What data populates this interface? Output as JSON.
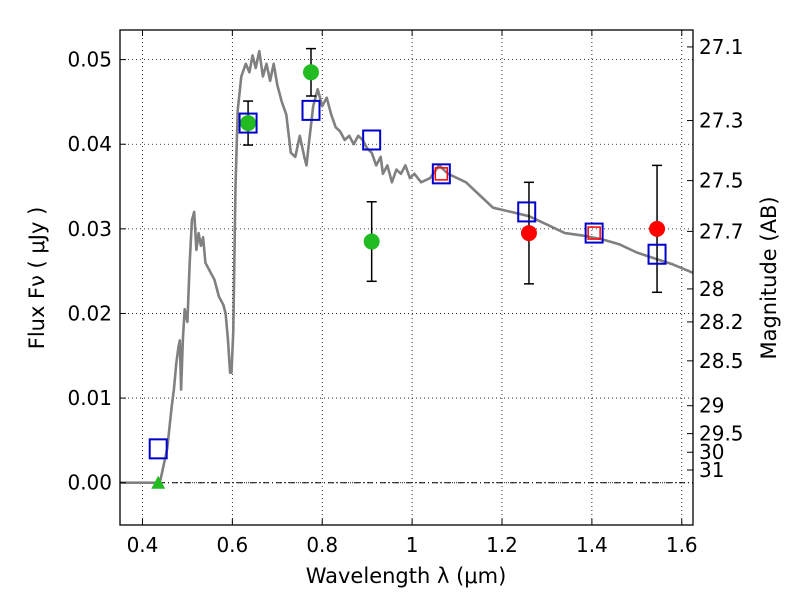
{
  "chart_data": {
    "type": "scatter",
    "xlabel": "Wavelength  λ (μm)",
    "ylabel": "Flux  Fν  ( μJy )",
    "y2label": "Magnitude (AB)",
    "xlim": [
      0.35,
      1.625
    ],
    "ylim": [
      -0.005,
      0.0535
    ],
    "grid": true,
    "x_ticks": [
      0.4,
      0.6,
      0.8,
      1.0,
      1.2,
      1.4,
      1.6
    ],
    "x_tick_labels": [
      "0.4",
      "0.6",
      "0.8",
      "1",
      "1.2",
      "1.4",
      "1.6"
    ],
    "y_ticks": [
      0.0,
      0.01,
      0.02,
      0.03,
      0.04,
      0.05
    ],
    "y_tick_labels": [
      "0.00",
      "0.01",
      "0.02",
      "0.03",
      "0.04",
      "0.05"
    ],
    "mag_ticks": [
      {
        "label": "27.1",
        "flux": 0.0515
      },
      {
        "label": "27.3",
        "flux": 0.0428
      },
      {
        "label": "27.5",
        "flux": 0.0357
      },
      {
        "label": "27.7",
        "flux": 0.0297
      },
      {
        "label": "28",
        "flux": 0.0229
      },
      {
        "label": "28.2",
        "flux": 0.019
      },
      {
        "label": "28.5",
        "flux": 0.0144
      },
      {
        "label": "29",
        "flux": 0.0091
      },
      {
        "label": "29.5",
        "flux": 0.0058
      },
      {
        "label": "30",
        "flux": 0.0036
      },
      {
        "label": "31",
        "flux": 0.0015
      }
    ],
    "sed_model": {
      "color": "#808080",
      "points": [
        [
          0.35,
          0.0
        ],
        [
          0.43,
          0.0
        ],
        [
          0.44,
          0.0003
        ],
        [
          0.455,
          0.004
        ],
        [
          0.465,
          0.009
        ],
        [
          0.47,
          0.011
        ],
        [
          0.475,
          0.014
        ],
        [
          0.48,
          0.016
        ],
        [
          0.483,
          0.0168
        ],
        [
          0.486,
          0.011
        ],
        [
          0.49,
          0.017
        ],
        [
          0.494,
          0.0205
        ],
        [
          0.5,
          0.019
        ],
        [
          0.505,
          0.026
        ],
        [
          0.51,
          0.031
        ],
        [
          0.515,
          0.032
        ],
        [
          0.52,
          0.0275
        ],
        [
          0.525,
          0.0295
        ],
        [
          0.53,
          0.028
        ],
        [
          0.535,
          0.029
        ],
        [
          0.54,
          0.026
        ],
        [
          0.55,
          0.025
        ],
        [
          0.56,
          0.024
        ],
        [
          0.57,
          0.022
        ],
        [
          0.58,
          0.021
        ],
        [
          0.585,
          0.02
        ],
        [
          0.59,
          0.017
        ],
        [
          0.595,
          0.013
        ],
        [
          0.598,
          0.013
        ],
        [
          0.602,
          0.018
        ],
        [
          0.607,
          0.035
        ],
        [
          0.612,
          0.044
        ],
        [
          0.62,
          0.048
        ],
        [
          0.63,
          0.0495
        ],
        [
          0.638,
          0.0485
        ],
        [
          0.645,
          0.0505
        ],
        [
          0.652,
          0.049
        ],
        [
          0.66,
          0.051
        ],
        [
          0.668,
          0.048
        ],
        [
          0.676,
          0.0495
        ],
        [
          0.684,
          0.0475
        ],
        [
          0.692,
          0.0495
        ],
        [
          0.7,
          0.047
        ],
        [
          0.71,
          0.045
        ],
        [
          0.72,
          0.0435
        ],
        [
          0.73,
          0.039
        ],
        [
          0.74,
          0.0385
        ],
        [
          0.75,
          0.041
        ],
        [
          0.76,
          0.0385
        ],
        [
          0.765,
          0.0375
        ],
        [
          0.77,
          0.04
        ],
        [
          0.78,
          0.0445
        ],
        [
          0.79,
          0.0465
        ],
        [
          0.8,
          0.0445
        ],
        [
          0.81,
          0.0455
        ],
        [
          0.82,
          0.0435
        ],
        [
          0.83,
          0.042
        ],
        [
          0.84,
          0.0415
        ],
        [
          0.85,
          0.0405
        ],
        [
          0.86,
          0.041
        ],
        [
          0.87,
          0.04
        ],
        [
          0.88,
          0.041
        ],
        [
          0.89,
          0.0405
        ],
        [
          0.9,
          0.0395
        ],
        [
          0.91,
          0.039
        ],
        [
          0.92,
          0.0375
        ],
        [
          0.93,
          0.0385
        ],
        [
          0.935,
          0.0365
        ],
        [
          0.945,
          0.0375
        ],
        [
          0.955,
          0.0355
        ],
        [
          0.965,
          0.037
        ],
        [
          0.975,
          0.0365
        ],
        [
          0.985,
          0.0375
        ],
        [
          0.995,
          0.036
        ],
        [
          1.005,
          0.0365
        ],
        [
          1.02,
          0.0355
        ],
        [
          1.04,
          0.036
        ],
        [
          1.06,
          0.0375
        ],
        [
          1.08,
          0.0365
        ],
        [
          1.1,
          0.036
        ],
        [
          1.12,
          0.0355
        ],
        [
          1.15,
          0.034
        ],
        [
          1.18,
          0.0325
        ],
        [
          1.22,
          0.032
        ],
        [
          1.26,
          0.0315
        ],
        [
          1.3,
          0.0305
        ],
        [
          1.34,
          0.0295
        ],
        [
          1.38,
          0.0292
        ],
        [
          1.42,
          0.0288
        ],
        [
          1.46,
          0.0282
        ],
        [
          1.5,
          0.0272
        ],
        [
          1.54,
          0.0265
        ],
        [
          1.58,
          0.0258
        ],
        [
          1.625,
          0.0248
        ]
      ]
    },
    "model_squares": {
      "color": "#0000cc",
      "points": [
        [
          0.435,
          0.004
        ],
        [
          0.635,
          0.0425
        ],
        [
          0.775,
          0.044
        ],
        [
          0.91,
          0.0405
        ],
        [
          1.065,
          0.0365
        ],
        [
          1.255,
          0.032
        ],
        [
          1.405,
          0.0295
        ],
        [
          1.545,
          0.027
        ]
      ]
    },
    "observed_hst_optical": {
      "color": "#22bb22",
      "points": [
        {
          "x": 0.635,
          "y": 0.0425,
          "err": 0.0026
        },
        {
          "x": 0.775,
          "y": 0.0485,
          "err": 0.0028
        },
        {
          "x": 0.91,
          "y": 0.0285,
          "err": 0.0047
        }
      ]
    },
    "observed_nir": {
      "color": "#ff0000",
      "points": [
        {
          "x": 1.065,
          "y": 0.0365,
          "err": 0.0
        },
        {
          "x": 1.26,
          "y": 0.0295,
          "err": 0.006
        },
        {
          "x": 1.405,
          "y": 0.0295,
          "err": 0.0
        },
        {
          "x": 1.545,
          "y": 0.03,
          "err": 0.0075
        }
      ]
    },
    "upper_limit": {
      "color": "#22bb22",
      "x": 0.435,
      "y": 0.0
    }
  }
}
